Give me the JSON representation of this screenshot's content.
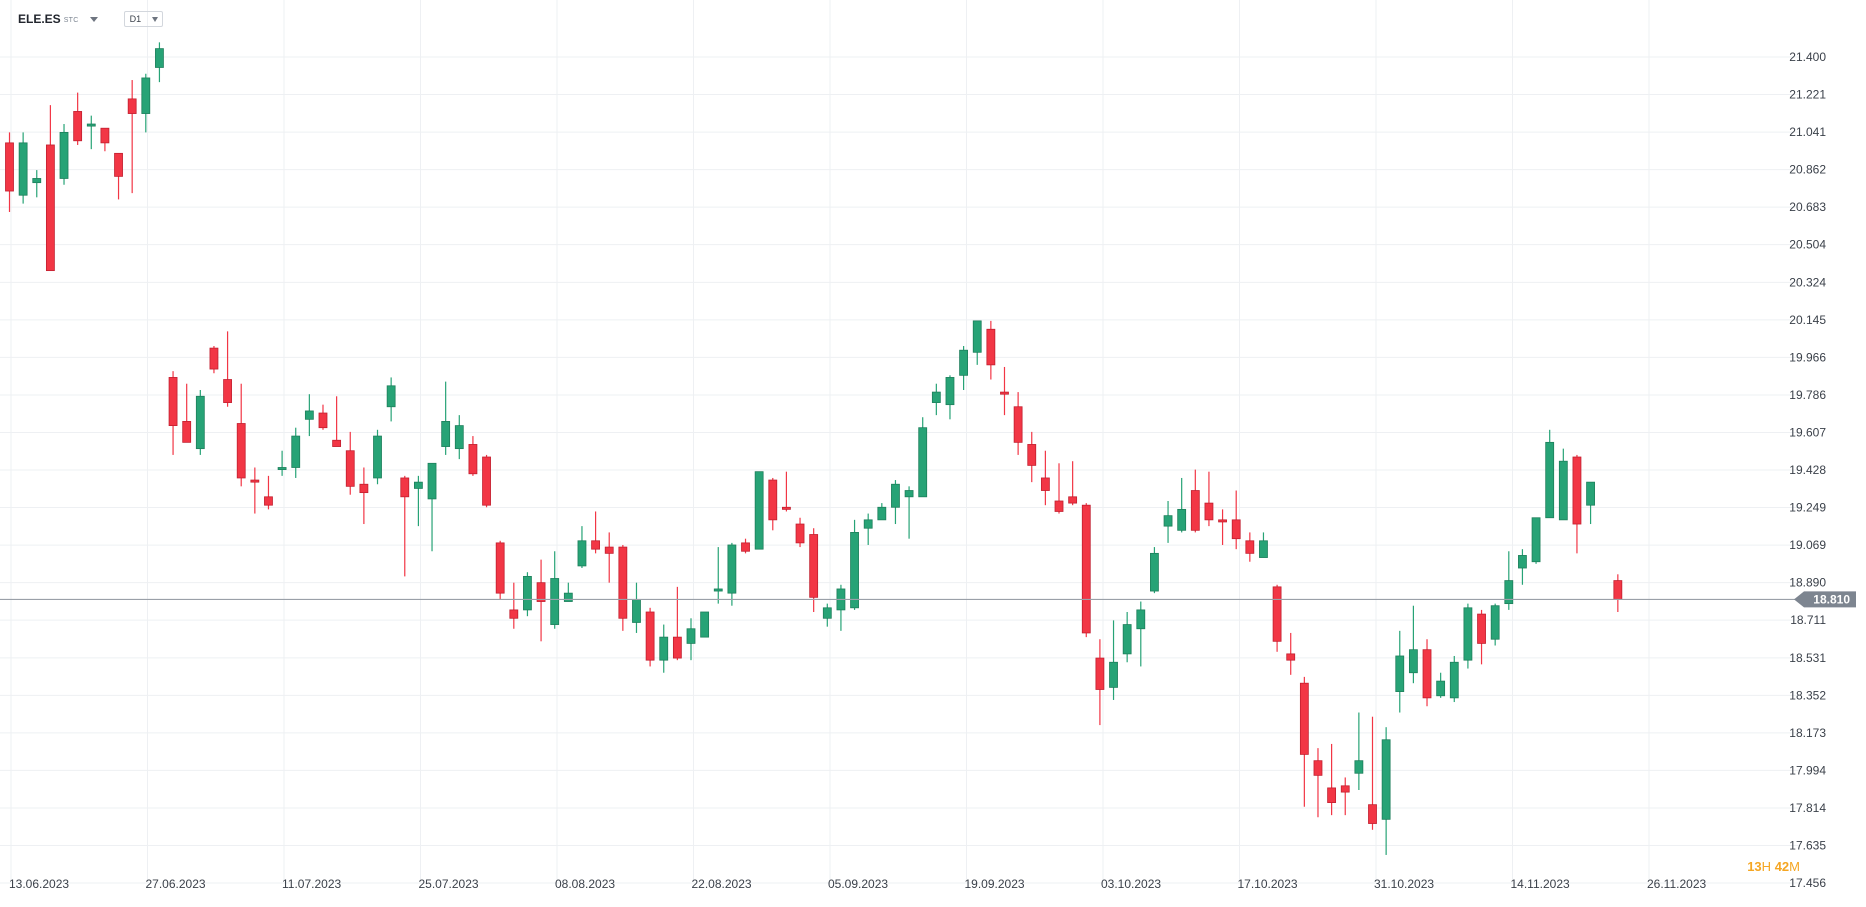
{
  "header": {
    "symbol": "ELE.ES",
    "symbol_suffix": "STC",
    "timeframe": "D1"
  },
  "countdown": {
    "hours": "13",
    "hours_unit": "H",
    "minutes": "42",
    "minutes_unit": "M"
  },
  "colors": {
    "up": "#27a376",
    "down": "#f23645",
    "grid": "#eef0f3",
    "price_line": "#9aa0a8",
    "price_label_bg": "#7d8590",
    "countdown": "#f5a623"
  },
  "chart_data": {
    "type": "candlestick",
    "ylim": [
      17.456,
      21.5
    ],
    "y_ticks": [
      "21.400",
      "21.221",
      "21.041",
      "20.862",
      "20.683",
      "20.504",
      "20.324",
      "20.145",
      "19.966",
      "19.786",
      "19.607",
      "19.428",
      "19.249",
      "19.069",
      "18.890",
      "18.711",
      "18.531",
      "18.352",
      "18.173",
      "17.994",
      "17.814",
      "17.635",
      "17.456"
    ],
    "x_ticks": [
      "13.06.2023",
      "27.06.2023",
      "11.07.2023",
      "25.07.2023",
      "08.08.2023",
      "22.08.2023",
      "05.09.2023",
      "19.09.2023",
      "03.10.2023",
      "17.10.2023",
      "31.10.2023",
      "14.11.2023",
      "26.11.2023"
    ],
    "current_price": "18.810",
    "current_price_value": 18.81,
    "candles": [
      {
        "o": 20.99,
        "h": 21.04,
        "l": 20.66,
        "c": 20.76
      },
      {
        "o": 20.74,
        "h": 21.04,
        "l": 20.7,
        "c": 20.99
      },
      {
        "o": 20.8,
        "h": 20.86,
        "l": 20.73,
        "c": 20.82
      },
      {
        "o": 20.98,
        "h": 21.17,
        "l": 20.38,
        "c": 20.38
      },
      {
        "o": 20.82,
        "h": 21.08,
        "l": 20.79,
        "c": 21.04
      },
      {
        "o": 21.14,
        "h": 21.23,
        "l": 20.98,
        "c": 21.0
      },
      {
        "o": 21.07,
        "h": 21.12,
        "l": 20.96,
        "c": 21.08
      },
      {
        "o": 21.06,
        "h": 21.06,
        "l": 20.95,
        "c": 20.99
      },
      {
        "o": 20.94,
        "h": 20.94,
        "l": 20.72,
        "c": 20.83
      },
      {
        "o": 21.2,
        "h": 21.29,
        "l": 20.75,
        "c": 21.13
      },
      {
        "o": 21.13,
        "h": 21.32,
        "l": 21.04,
        "c": 21.3
      },
      {
        "o": 21.35,
        "h": 21.47,
        "l": 21.28,
        "c": 21.44
      },
      {
        "o": 19.87,
        "h": 19.9,
        "l": 19.5,
        "c": 19.64
      },
      {
        "o": 19.66,
        "h": 19.84,
        "l": 19.56,
        "c": 19.56
      },
      {
        "o": 19.53,
        "h": 19.81,
        "l": 19.5,
        "c": 19.78
      },
      {
        "o": 20.01,
        "h": 20.02,
        "l": 19.89,
        "c": 19.91
      },
      {
        "o": 19.86,
        "h": 20.09,
        "l": 19.73,
        "c": 19.75
      },
      {
        "o": 19.65,
        "h": 19.84,
        "l": 19.35,
        "c": 19.39
      },
      {
        "o": 19.38,
        "h": 19.44,
        "l": 19.22,
        "c": 19.37
      },
      {
        "o": 19.3,
        "h": 19.4,
        "l": 19.24,
        "c": 19.26
      },
      {
        "o": 19.43,
        "h": 19.52,
        "l": 19.4,
        "c": 19.44
      },
      {
        "o": 19.44,
        "h": 19.63,
        "l": 19.39,
        "c": 19.59
      },
      {
        "o": 19.67,
        "h": 19.79,
        "l": 19.59,
        "c": 19.71
      },
      {
        "o": 19.7,
        "h": 19.74,
        "l": 19.62,
        "c": 19.63
      },
      {
        "o": 19.57,
        "h": 19.78,
        "l": 19.55,
        "c": 19.54
      },
      {
        "o": 19.52,
        "h": 19.61,
        "l": 19.31,
        "c": 19.35
      },
      {
        "o": 19.36,
        "h": 19.44,
        "l": 19.17,
        "c": 19.32
      },
      {
        "o": 19.39,
        "h": 19.62,
        "l": 19.36,
        "c": 19.59
      },
      {
        "o": 19.73,
        "h": 19.87,
        "l": 19.66,
        "c": 19.83
      },
      {
        "o": 19.39,
        "h": 19.4,
        "l": 18.92,
        "c": 19.3
      },
      {
        "o": 19.34,
        "h": 19.4,
        "l": 19.16,
        "c": 19.37
      },
      {
        "o": 19.29,
        "h": 19.45,
        "l": 19.04,
        "c": 19.46
      },
      {
        "o": 19.54,
        "h": 19.85,
        "l": 19.5,
        "c": 19.66
      },
      {
        "o": 19.53,
        "h": 19.69,
        "l": 19.48,
        "c": 19.64
      },
      {
        "o": 19.55,
        "h": 19.59,
        "l": 19.4,
        "c": 19.41
      },
      {
        "o": 19.49,
        "h": 19.5,
        "l": 19.25,
        "c": 19.26
      },
      {
        "o": 19.08,
        "h": 19.09,
        "l": 18.81,
        "c": 18.84
      },
      {
        "o": 18.76,
        "h": 18.89,
        "l": 18.67,
        "c": 18.72
      },
      {
        "o": 18.76,
        "h": 18.94,
        "l": 18.73,
        "c": 18.92
      },
      {
        "o": 18.89,
        "h": 19.0,
        "l": 18.61,
        "c": 18.8
      },
      {
        "o": 18.69,
        "h": 19.04,
        "l": 18.67,
        "c": 18.91
      },
      {
        "o": 18.8,
        "h": 18.89,
        "l": 18.8,
        "c": 18.84
      },
      {
        "o": 18.97,
        "h": 19.16,
        "l": 18.96,
        "c": 19.09
      },
      {
        "o": 19.09,
        "h": 19.23,
        "l": 19.03,
        "c": 19.05
      },
      {
        "o": 19.06,
        "h": 19.13,
        "l": 18.89,
        "c": 19.03
      },
      {
        "o": 19.06,
        "h": 19.07,
        "l": 18.66,
        "c": 18.72
      },
      {
        "o": 18.7,
        "h": 18.89,
        "l": 18.65,
        "c": 18.81
      },
      {
        "o": 18.75,
        "h": 18.77,
        "l": 18.49,
        "c": 18.52
      },
      {
        "o": 18.52,
        "h": 18.69,
        "l": 18.46,
        "c": 18.63
      },
      {
        "o": 18.63,
        "h": 18.87,
        "l": 18.52,
        "c": 18.53
      },
      {
        "o": 18.6,
        "h": 18.72,
        "l": 18.52,
        "c": 18.67
      },
      {
        "o": 18.63,
        "h": 18.75,
        "l": 18.63,
        "c": 18.75
      },
      {
        "o": 18.85,
        "h": 19.06,
        "l": 18.79,
        "c": 18.86
      },
      {
        "o": 18.84,
        "h": 19.08,
        "l": 18.78,
        "c": 19.07
      },
      {
        "o": 19.08,
        "h": 19.1,
        "l": 19.03,
        "c": 19.04
      },
      {
        "o": 19.05,
        "h": 19.42,
        "l": 19.05,
        "c": 19.42
      },
      {
        "o": 19.38,
        "h": 19.39,
        "l": 19.14,
        "c": 19.19
      },
      {
        "o": 19.25,
        "h": 19.42,
        "l": 19.23,
        "c": 19.24
      },
      {
        "o": 19.17,
        "h": 19.2,
        "l": 19.06,
        "c": 19.08
      },
      {
        "o": 19.12,
        "h": 19.15,
        "l": 18.75,
        "c": 18.82
      },
      {
        "o": 18.72,
        "h": 18.79,
        "l": 18.68,
        "c": 18.77
      },
      {
        "o": 18.76,
        "h": 18.88,
        "l": 18.66,
        "c": 18.86
      },
      {
        "o": 18.77,
        "h": 19.19,
        "l": 18.76,
        "c": 19.13
      },
      {
        "o": 19.15,
        "h": 19.22,
        "l": 19.07,
        "c": 19.19
      },
      {
        "o": 19.19,
        "h": 19.27,
        "l": 19.19,
        "c": 19.25
      },
      {
        "o": 19.25,
        "h": 19.38,
        "l": 19.17,
        "c": 19.36
      },
      {
        "o": 19.3,
        "h": 19.35,
        "l": 19.1,
        "c": 19.33
      },
      {
        "o": 19.3,
        "h": 19.68,
        "l": 19.3,
        "c": 19.63
      },
      {
        "o": 19.75,
        "h": 19.84,
        "l": 19.69,
        "c": 19.8
      },
      {
        "o": 19.74,
        "h": 19.88,
        "l": 19.67,
        "c": 19.87
      },
      {
        "o": 19.88,
        "h": 20.02,
        "l": 19.81,
        "c": 20.0
      },
      {
        "o": 19.99,
        "h": 20.14,
        "l": 19.93,
        "c": 20.14
      },
      {
        "o": 20.1,
        "h": 20.14,
        "l": 19.86,
        "c": 19.93
      },
      {
        "o": 19.8,
        "h": 19.92,
        "l": 19.69,
        "c": 19.79
      },
      {
        "o": 19.73,
        "h": 19.8,
        "l": 19.5,
        "c": 19.56
      },
      {
        "o": 19.55,
        "h": 19.61,
        "l": 19.37,
        "c": 19.45
      },
      {
        "o": 19.39,
        "h": 19.52,
        "l": 19.26,
        "c": 19.33
      },
      {
        "o": 19.28,
        "h": 19.46,
        "l": 19.22,
        "c": 19.23
      },
      {
        "o": 19.3,
        "h": 19.47,
        "l": 19.26,
        "c": 19.27
      },
      {
        "o": 19.26,
        "h": 19.27,
        "l": 18.63,
        "c": 18.65
      },
      {
        "o": 18.53,
        "h": 18.62,
        "l": 18.21,
        "c": 18.38
      },
      {
        "o": 18.39,
        "h": 18.71,
        "l": 18.33,
        "c": 18.51
      },
      {
        "o": 18.55,
        "h": 18.75,
        "l": 18.51,
        "c": 18.69
      },
      {
        "o": 18.67,
        "h": 18.8,
        "l": 18.49,
        "c": 18.76
      },
      {
        "o": 18.85,
        "h": 19.06,
        "l": 18.84,
        "c": 19.03
      },
      {
        "o": 19.16,
        "h": 19.28,
        "l": 19.08,
        "c": 19.21
      },
      {
        "o": 19.14,
        "h": 19.39,
        "l": 19.13,
        "c": 19.24
      },
      {
        "o": 19.33,
        "h": 19.43,
        "l": 19.13,
        "c": 19.14
      },
      {
        "o": 19.27,
        "h": 19.42,
        "l": 19.16,
        "c": 19.19
      },
      {
        "o": 19.19,
        "h": 19.24,
        "l": 19.07,
        "c": 19.18
      },
      {
        "o": 19.19,
        "h": 19.33,
        "l": 19.05,
        "c": 19.1
      },
      {
        "o": 19.09,
        "h": 19.13,
        "l": 18.99,
        "c": 19.03
      },
      {
        "o": 19.01,
        "h": 19.13,
        "l": 19.01,
        "c": 19.09
      },
      {
        "o": 18.87,
        "h": 18.88,
        "l": 18.56,
        "c": 18.61
      },
      {
        "o": 18.55,
        "h": 18.65,
        "l": 18.45,
        "c": 18.52
      },
      {
        "o": 18.41,
        "h": 18.44,
        "l": 17.82,
        "c": 18.07
      },
      {
        "o": 18.04,
        "h": 18.1,
        "l": 17.77,
        "c": 17.97
      },
      {
        "o": 17.91,
        "h": 18.12,
        "l": 17.78,
        "c": 17.84
      },
      {
        "o": 17.92,
        "h": 17.96,
        "l": 17.78,
        "c": 17.89
      },
      {
        "o": 17.98,
        "h": 18.27,
        "l": 17.9,
        "c": 18.04
      },
      {
        "o": 17.83,
        "h": 18.25,
        "l": 17.71,
        "c": 17.74
      },
      {
        "o": 17.76,
        "h": 18.2,
        "l": 17.59,
        "c": 18.14
      },
      {
        "o": 18.37,
        "h": 18.66,
        "l": 18.27,
        "c": 18.54
      },
      {
        "o": 18.46,
        "h": 18.78,
        "l": 18.41,
        "c": 18.57
      },
      {
        "o": 18.57,
        "h": 18.62,
        "l": 18.3,
        "c": 18.34
      },
      {
        "o": 18.35,
        "h": 18.46,
        "l": 18.34,
        "c": 18.42
      },
      {
        "o": 18.34,
        "h": 18.54,
        "l": 18.32,
        "c": 18.51
      },
      {
        "o": 18.52,
        "h": 18.79,
        "l": 18.48,
        "c": 18.77
      },
      {
        "o": 18.74,
        "h": 18.76,
        "l": 18.5,
        "c": 18.6
      },
      {
        "o": 18.62,
        "h": 18.79,
        "l": 18.59,
        "c": 18.78
      },
      {
        "o": 18.79,
        "h": 19.04,
        "l": 18.76,
        "c": 18.9
      },
      {
        "o": 18.96,
        "h": 19.05,
        "l": 18.88,
        "c": 19.02
      },
      {
        "o": 18.99,
        "h": 19.2,
        "l": 18.98,
        "c": 19.2
      },
      {
        "o": 19.2,
        "h": 19.62,
        "l": 19.2,
        "c": 19.56
      },
      {
        "o": 19.19,
        "h": 19.53,
        "l": 19.19,
        "c": 19.47
      },
      {
        "o": 19.49,
        "h": 19.5,
        "l": 19.03,
        "c": 19.17
      },
      {
        "o": 19.26,
        "h": 19.37,
        "l": 19.17,
        "c": 19.37
      },
      {
        "o": null
      },
      {
        "o": 18.9,
        "h": 18.93,
        "l": 18.75,
        "c": 18.81
      }
    ]
  }
}
